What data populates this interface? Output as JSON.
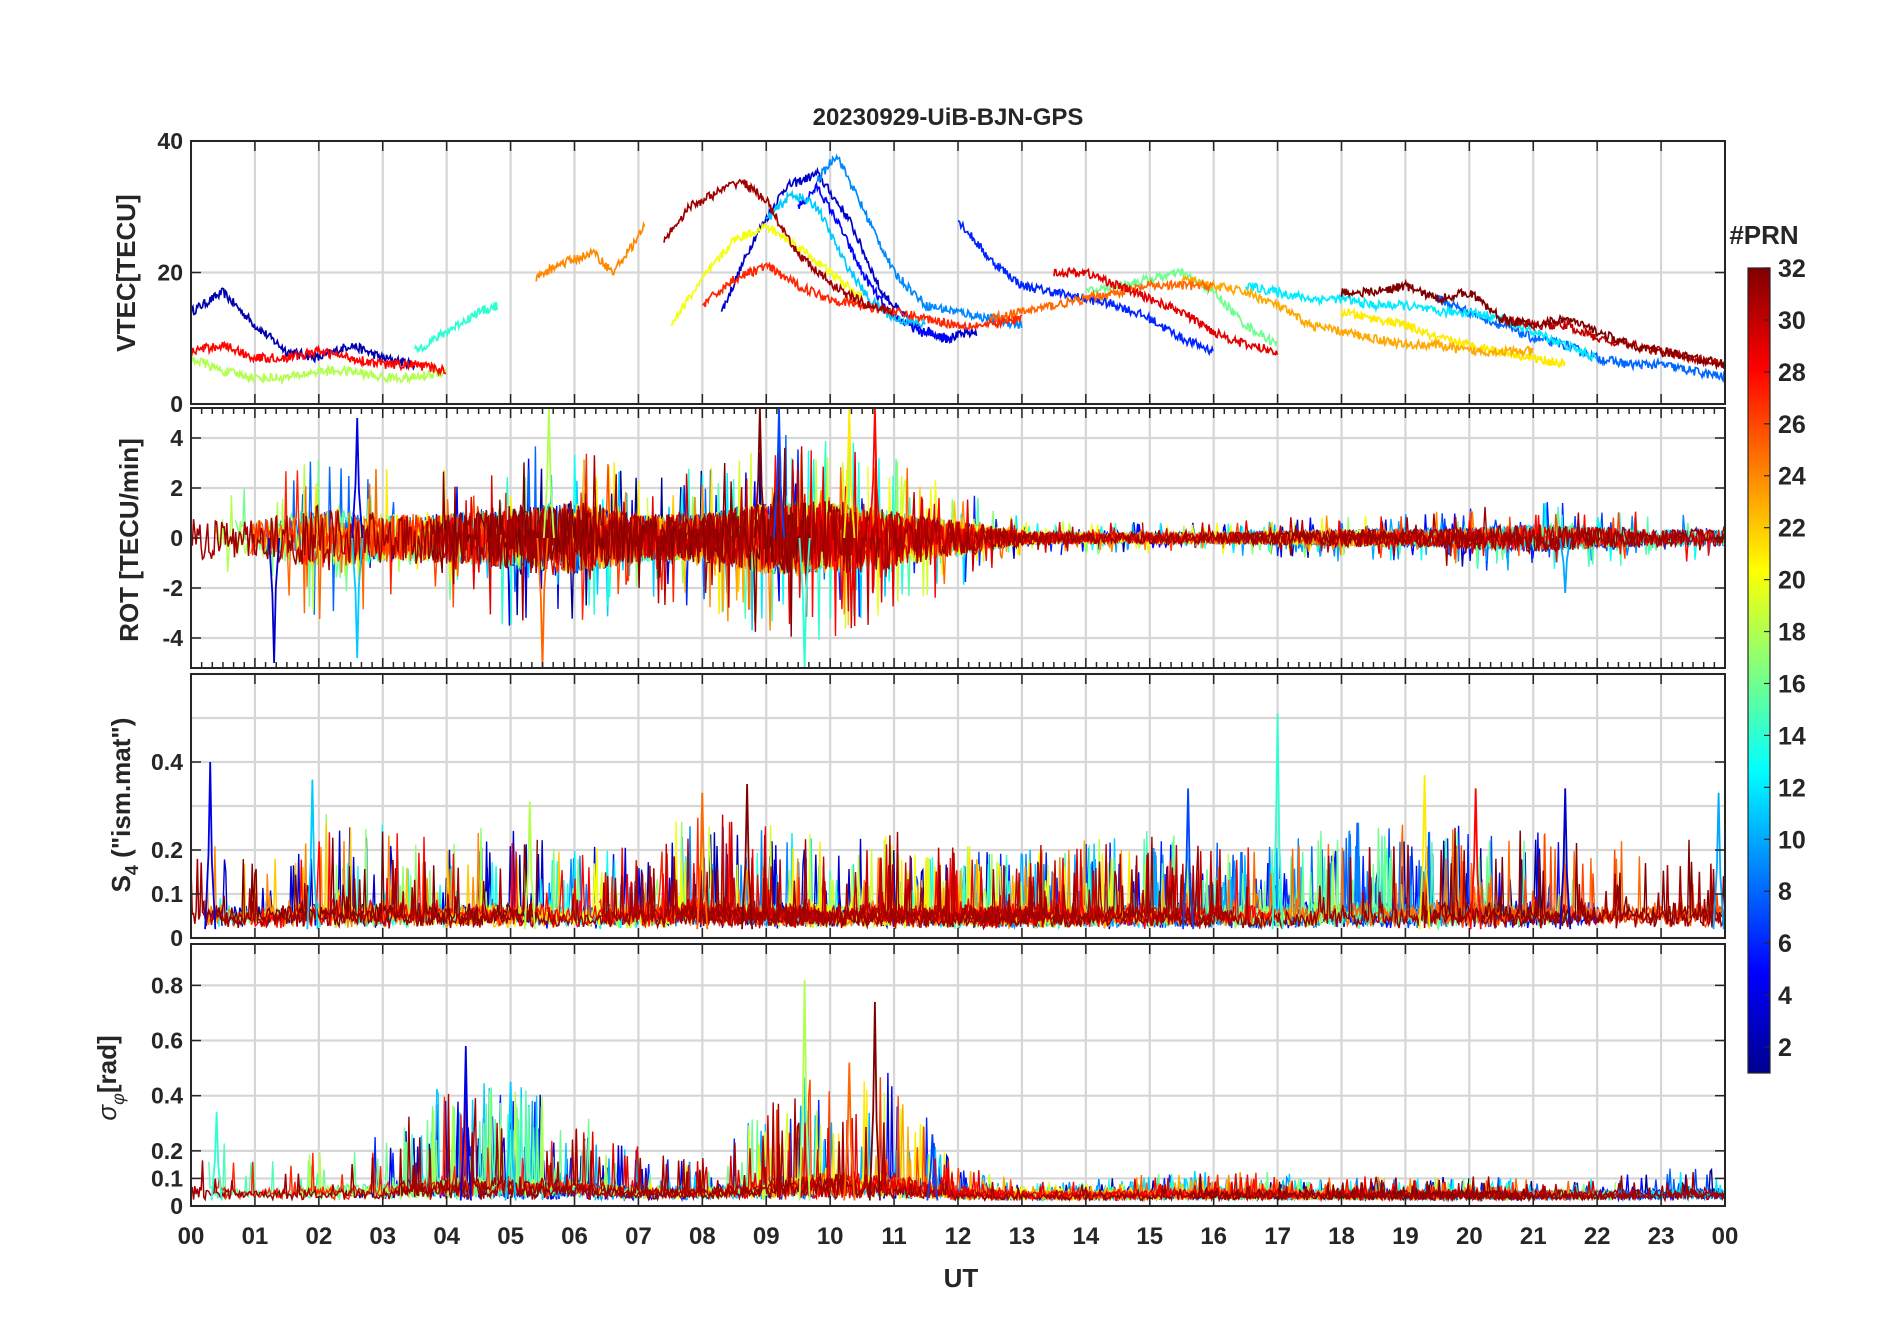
{
  "figure": {
    "title": "20230929-UiB-BJN-GPS",
    "xlabel": "UT",
    "x_ticks": [
      "00",
      "01",
      "02",
      "03",
      "04",
      "05",
      "06",
      "07",
      "08",
      "09",
      "10",
      "11",
      "12",
      "13",
      "14",
      "15",
      "16",
      "17",
      "18",
      "19",
      "20",
      "21",
      "22",
      "23",
      "00"
    ]
  },
  "colorbar": {
    "label": "#PRN",
    "ticks": [
      "2",
      "4",
      "6",
      "8",
      "10",
      "12",
      "14",
      "16",
      "18",
      "20",
      "22",
      "24",
      "26",
      "28",
      "30",
      "32"
    ],
    "range": [
      1,
      32
    ],
    "colormap": "jet",
    "stops": [
      "#00008f",
      "#0000ff",
      "#0080ff",
      "#00ffff",
      "#80ff80",
      "#ffff00",
      "#ff8000",
      "#ff0000",
      "#800000"
    ]
  },
  "chart_data": [
    {
      "type": "line",
      "panel": "vtec",
      "ylabel": "VTEC[TECU]",
      "xlim": [
        0,
        24
      ],
      "ylim": [
        0,
        40
      ],
      "yticks": [
        0,
        20,
        40
      ],
      "ytick_labels": [
        "0",
        "20",
        "40"
      ],
      "description_series": "≈32 GPS PRN arcs, colored by PRN",
      "series": [
        {
          "name": "PRN 2",
          "prn": 2,
          "x": [
            0.0,
            0.5,
            1.0,
            1.5,
            2.0,
            2.5,
            3.0,
            3.5
          ],
          "y": [
            14,
            17,
            12,
            8,
            7,
            9,
            7,
            6
          ]
        },
        {
          "name": "PRN 3",
          "prn": 3,
          "x": [
            8.3,
            8.8,
            9.3,
            9.8,
            10.3,
            10.8,
            11.3,
            11.8,
            12.3
          ],
          "y": [
            14,
            25,
            33,
            35,
            28,
            17,
            12,
            10,
            11
          ]
        },
        {
          "name": "PRN 5",
          "prn": 5,
          "x": [
            9.5,
            9.8,
            10.1,
            10.5,
            10.9,
            11.4,
            11.9
          ],
          "y": [
            30,
            33,
            28,
            20,
            14,
            11,
            10
          ]
        },
        {
          "name": "PRN 6",
          "prn": 6,
          "x": [
            12.0,
            12.5,
            13.0,
            13.5,
            14.0,
            14.5,
            15.0,
            15.5,
            16.0
          ],
          "y": [
            28,
            22,
            18,
            17,
            16,
            15,
            13,
            10,
            8
          ]
        },
        {
          "name": "PRN 8",
          "prn": 8,
          "x": [
            19.5,
            20.0,
            20.5,
            21.0,
            21.5,
            22.0,
            22.5,
            23.0,
            23.5,
            24.0
          ],
          "y": [
            16,
            14,
            12,
            10,
            9,
            7,
            6,
            6,
            5,
            4
          ]
        },
        {
          "name": "PRN 9",
          "prn": 9,
          "x": [
            9.8,
            10.1,
            10.5,
            11.0,
            11.5,
            12.0,
            12.5,
            13.0
          ],
          "y": [
            34,
            38,
            30,
            20,
            15,
            14,
            13,
            12
          ]
        },
        {
          "name": "PRN 11",
          "prn": 11,
          "x": [
            9.0,
            9.4,
            9.8,
            10.2,
            10.6,
            11.0,
            11.5
          ],
          "y": [
            28,
            32,
            30,
            22,
            16,
            13,
            12
          ]
        },
        {
          "name": "PRN 12",
          "prn": 12,
          "x": [
            16.5,
            17.0,
            17.5,
            18.0,
            18.5,
            19.0,
            19.5,
            20.0,
            20.5,
            21.0,
            21.5,
            22.0
          ],
          "y": [
            18,
            17,
            16,
            16,
            15,
            15,
            14,
            14,
            13,
            11,
            9,
            7
          ]
        },
        {
          "name": "PRN 14",
          "prn": 14,
          "x": [
            3.5,
            4.0,
            4.5,
            4.8
          ],
          "y": [
            8,
            11,
            14,
            15
          ]
        },
        {
          "name": "PRN 16",
          "prn": 16,
          "x": [
            14.0,
            14.5,
            15.0,
            15.5,
            16.0,
            16.5,
            17.0
          ],
          "y": [
            17,
            18,
            19,
            20,
            17,
            12,
            9
          ]
        },
        {
          "name": "PRN 18",
          "prn": 18,
          "x": [
            0.0,
            0.5,
            1.0,
            1.5,
            2.0,
            2.5,
            3.0,
            3.5,
            4.0
          ],
          "y": [
            7,
            5,
            4,
            4,
            5,
            5,
            4,
            4,
            5
          ]
        },
        {
          "name": "PRN 20",
          "prn": 20,
          "x": [
            7.5,
            8.0,
            8.5,
            9.0,
            9.5,
            10.0,
            10.5
          ],
          "y": [
            12,
            19,
            25,
            27,
            24,
            20,
            16
          ]
        },
        {
          "name": "PRN 21",
          "prn": 21,
          "x": [
            18.0,
            18.5,
            19.0,
            19.5,
            20.0,
            20.5,
            21.0,
            21.5
          ],
          "y": [
            14,
            13,
            12,
            10,
            9,
            8,
            7,
            6
          ]
        },
        {
          "name": "PRN 23",
          "prn": 23,
          "x": [
            15.5,
            16.0,
            16.5,
            17.0,
            17.5,
            18.0,
            18.5,
            19.0,
            19.5,
            20.0,
            20.5,
            21.0
          ],
          "y": [
            19,
            18,
            17,
            15,
            12,
            11,
            10,
            9,
            9,
            8,
            8,
            8
          ]
        },
        {
          "name": "PRN 24",
          "prn": 24,
          "x": [
            5.4,
            5.7,
            6.0,
            6.3,
            6.6,
            6.9,
            7.1
          ],
          "y": [
            19,
            21,
            22,
            23,
            20,
            24,
            27
          ]
        },
        {
          "name": "PRN 25",
          "prn": 25,
          "x": [
            12.5,
            13.0,
            13.5,
            14.0,
            14.5,
            15.0,
            15.5,
            16.0
          ],
          "y": [
            13,
            14,
            15,
            16,
            17,
            18,
            18,
            18
          ]
        },
        {
          "name": "PRN 27",
          "prn": 27,
          "x": [
            8.0,
            8.5,
            9.0,
            9.5,
            10.0,
            10.5,
            11.0,
            11.5,
            12.0,
            12.5,
            13.0
          ],
          "y": [
            15,
            19,
            21,
            18,
            16,
            15,
            14,
            13,
            12,
            12,
            13
          ]
        },
        {
          "name": "PRN 28",
          "prn": 28,
          "x": [
            0.0,
            0.5,
            1.0,
            1.5,
            2.0,
            2.5,
            3.0,
            3.5,
            4.0
          ],
          "y": [
            8,
            9,
            7,
            7,
            8,
            7,
            6,
            6,
            5
          ]
        },
        {
          "name": "PRN 29",
          "prn": 29,
          "x": [
            13.5,
            14.0,
            14.5,
            15.0,
            15.5,
            16.0,
            16.5,
            17.0
          ],
          "y": [
            20,
            20,
            18,
            16,
            14,
            11,
            9,
            8
          ]
        },
        {
          "name": "PRN 30",
          "prn": 30,
          "x": [
            20.5,
            21.0,
            21.5,
            22.0,
            22.5,
            23.0,
            23.5,
            24.0
          ],
          "y": [
            13,
            12,
            12,
            10,
            9,
            8,
            7,
            6
          ]
        },
        {
          "name": "PRN 31",
          "prn": 31,
          "x": [
            7.4,
            7.8,
            8.2,
            8.6,
            9.0,
            9.4,
            9.8,
            10.2,
            10.6,
            11.0
          ],
          "y": [
            25,
            30,
            32,
            34,
            31,
            24,
            20,
            17,
            15,
            14
          ]
        },
        {
          "name": "PRN 32",
          "prn": 32,
          "x": [
            18.0,
            18.5,
            19.0,
            19.5,
            20.0,
            20.5,
            21.0,
            21.5,
            22.0,
            22.5,
            23.0,
            23.5,
            24.0
          ],
          "y": [
            17,
            17,
            18,
            16,
            17,
            13,
            12,
            13,
            11,
            9,
            8,
            7,
            6
          ]
        }
      ]
    },
    {
      "type": "line",
      "panel": "rot",
      "ylabel": "ROT [TECU/min]",
      "xlim": [
        0,
        24
      ],
      "ylim": [
        -5.2,
        5.2
      ],
      "yticks": [
        -4,
        -2,
        0,
        2,
        4
      ],
      "ytick_labels": [
        "-4",
        "-2",
        "0",
        "2",
        "4"
      ],
      "envelope_hours": [
        0,
        1,
        2,
        3,
        4,
        5,
        6,
        7,
        8,
        9,
        10,
        11,
        12,
        13,
        14,
        15,
        16,
        17,
        18,
        19,
        20,
        21,
        22,
        23,
        24
      ],
      "envelope_max_abs": [
        3.0,
        2.5,
        4.5,
        3.5,
        3.5,
        4.5,
        5.2,
        3.5,
        3.5,
        5.2,
        5.2,
        4.0,
        2.5,
        1.0,
        0.8,
        0.8,
        0.8,
        1.0,
        1.2,
        1.2,
        1.5,
        2.0,
        1.5,
        1.2,
        1.2
      ],
      "spike_peaks": [
        {
          "x": 2.6,
          "y": 4.8
        },
        {
          "x": 2.6,
          "y": -4.8
        },
        {
          "x": 5.6,
          "y": 5.2
        },
        {
          "x": 5.5,
          "y": -5.2
        },
        {
          "x": 8.9,
          "y": 5.2
        },
        {
          "x": 9.2,
          "y": 5.2
        },
        {
          "x": 9.6,
          "y": -5.2
        },
        {
          "x": 10.3,
          "y": 5.2
        },
        {
          "x": 10.7,
          "y": 5.2
        },
        {
          "x": 1.3,
          "y": -5.0
        },
        {
          "x": 21.5,
          "y": -2.2
        }
      ]
    },
    {
      "type": "line",
      "panel": "s4",
      "ylabel_main": "S",
      "ylabel_sub": "4",
      "ylabel_rest": " (\"ism.mat\")",
      "xlim": [
        0,
        24
      ],
      "ylim": [
        0,
        0.6
      ],
      "yticks": [
        0,
        0.1,
        0.2,
        0.4
      ],
      "ytick_labels": [
        "0",
        "0.1",
        "0.2",
        "0.4"
      ],
      "ygrid": [
        0,
        0.1,
        0.2,
        0.3,
        0.4,
        0.5,
        0.6
      ],
      "envelope_hours": [
        0,
        1,
        2,
        3,
        4,
        5,
        6,
        7,
        8,
        9,
        10,
        11,
        12,
        13,
        14,
        15,
        16,
        17,
        18,
        19,
        20,
        21,
        22,
        23,
        24
      ],
      "envelope_max": [
        0.28,
        0.15,
        0.28,
        0.25,
        0.2,
        0.25,
        0.18,
        0.2,
        0.3,
        0.25,
        0.2,
        0.22,
        0.18,
        0.2,
        0.2,
        0.22,
        0.2,
        0.2,
        0.25,
        0.25,
        0.25,
        0.25,
        0.22,
        0.22,
        0.25
      ],
      "spike_peaks": [
        {
          "x": 0.3,
          "y": 0.4
        },
        {
          "x": 1.9,
          "y": 0.36
        },
        {
          "x": 5.3,
          "y": 0.31
        },
        {
          "x": 8.0,
          "y": 0.33
        },
        {
          "x": 8.7,
          "y": 0.35
        },
        {
          "x": 15.6,
          "y": 0.34
        },
        {
          "x": 17.0,
          "y": 0.51
        },
        {
          "x": 19.3,
          "y": 0.37
        },
        {
          "x": 20.1,
          "y": 0.34
        },
        {
          "x": 21.5,
          "y": 0.34
        },
        {
          "x": 23.9,
          "y": 0.33
        }
      ]
    },
    {
      "type": "line",
      "panel": "sigma_phi",
      "ylabel_symbol": "σ",
      "ylabel_sub": "φ",
      "ylabel_rest": "[rad]",
      "xlim": [
        0,
        24
      ],
      "ylim": [
        0,
        0.95
      ],
      "yticks": [
        0,
        0.1,
        0.2,
        0.4,
        0.6,
        0.8
      ],
      "ytick_labels": [
        "0",
        "0.1",
        "0.2",
        "0.4",
        "0.6",
        "0.8"
      ],
      "ygrid": [
        0,
        0.1,
        0.2,
        0.4,
        0.6,
        0.8
      ],
      "envelope_hours": [
        0,
        1,
        2,
        3,
        4,
        5,
        6,
        7,
        8,
        9,
        10,
        11,
        12,
        13,
        14,
        15,
        16,
        17,
        18,
        19,
        20,
        21,
        22,
        23,
        24
      ],
      "envelope_max": [
        0.32,
        0.15,
        0.2,
        0.25,
        0.45,
        0.45,
        0.35,
        0.2,
        0.15,
        0.35,
        0.55,
        0.5,
        0.12,
        0.05,
        0.06,
        0.08,
        0.1,
        0.08,
        0.07,
        0.07,
        0.07,
        0.06,
        0.06,
        0.1,
        0.12
      ],
      "spike_peaks": [
        {
          "x": 4.3,
          "y": 0.58
        },
        {
          "x": 5.0,
          "y": 0.45
        },
        {
          "x": 9.6,
          "y": 0.82
        },
        {
          "x": 10.3,
          "y": 0.52
        },
        {
          "x": 10.7,
          "y": 0.74
        },
        {
          "x": 11.6,
          "y": 0.26
        },
        {
          "x": 0.4,
          "y": 0.34
        }
      ]
    }
  ]
}
